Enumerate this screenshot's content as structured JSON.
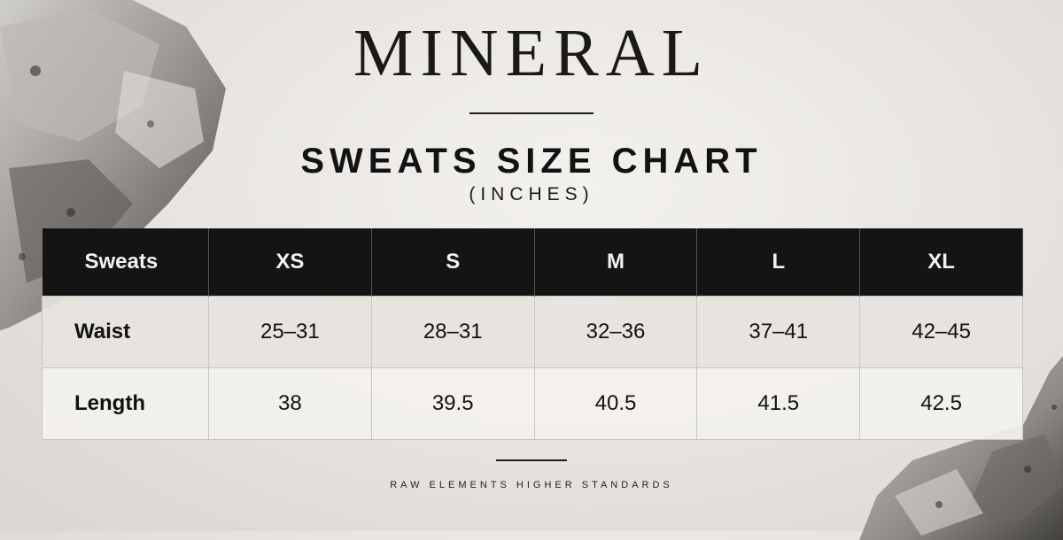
{
  "brand": "MINERAL",
  "title": "SWEATS SIZE CHART",
  "subtitle": "(INCHES)",
  "table": {
    "headers": [
      "Sweats",
      "XS",
      "S",
      "M",
      "L",
      "XL"
    ],
    "rows": [
      {
        "label": "Waist",
        "values": [
          "25–31",
          "28–31",
          "32–36",
          "37–41",
          "42–45"
        ]
      },
      {
        "label": "Length",
        "values": [
          "38",
          "39.5",
          "40.5",
          "41.5",
          "42.5"
        ]
      }
    ]
  },
  "tagline": "RAW ELEMENTS HIGHER STANDARDS",
  "colors": {
    "background": "#e9e6e2",
    "header_bg": "#141414",
    "header_text": "#f2f2f2",
    "row_odd": "#e6e3df",
    "row_even": "#f3f1ee"
  }
}
